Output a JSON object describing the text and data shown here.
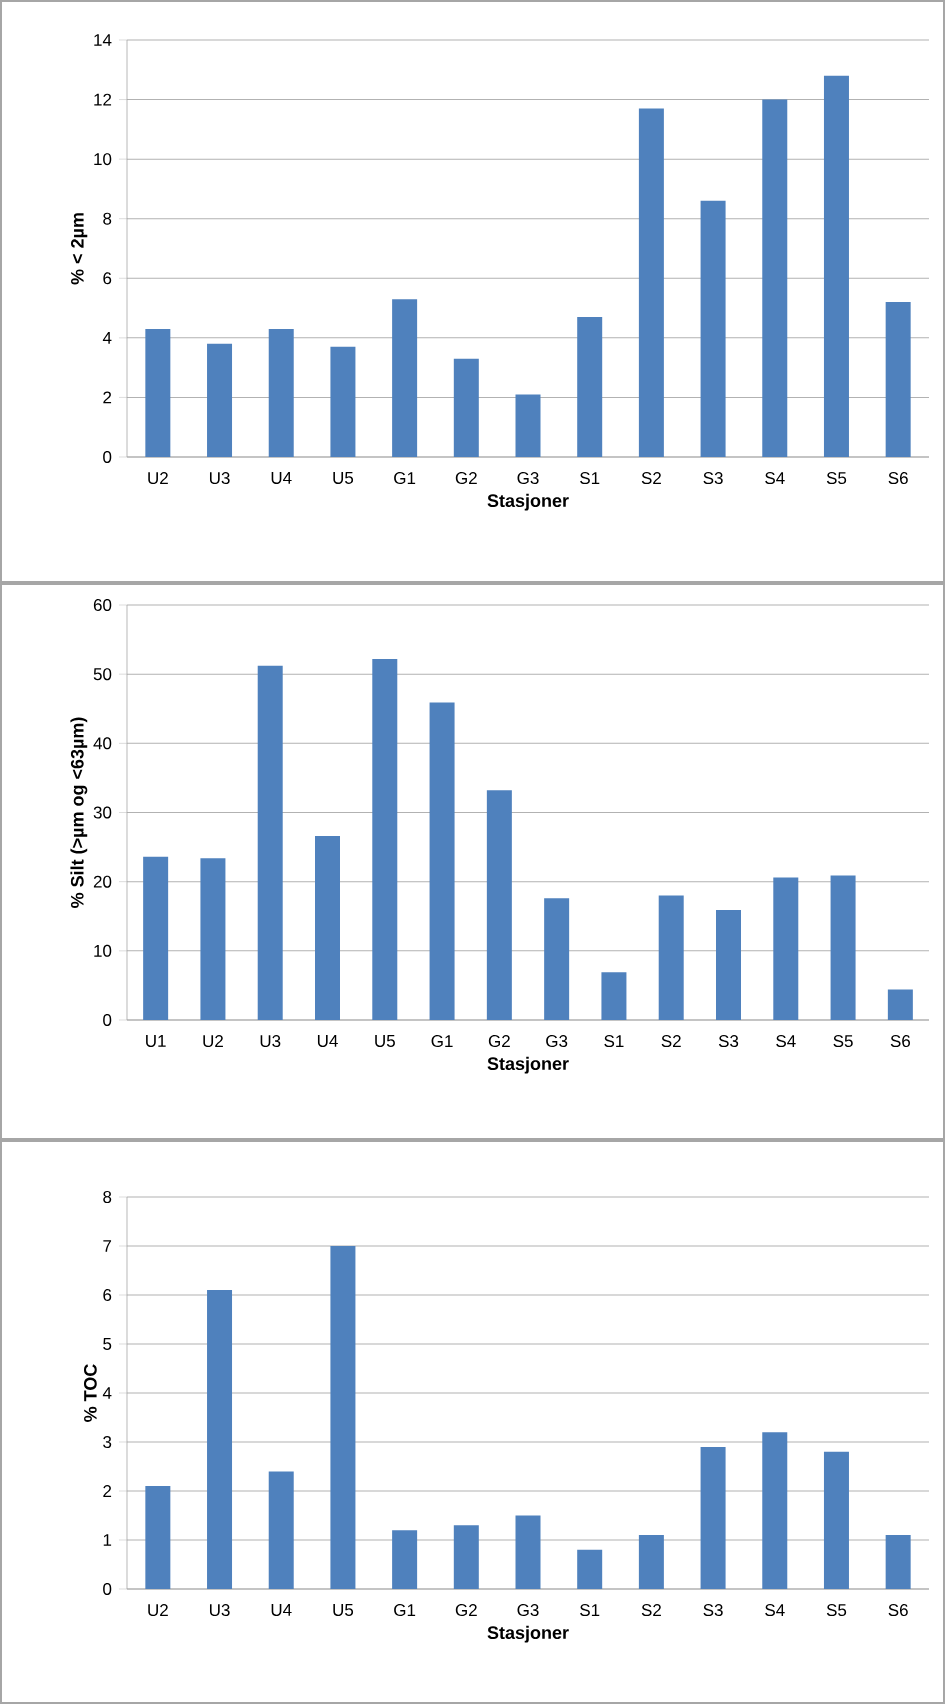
{
  "chart_data": [
    {
      "type": "bar",
      "categories": [
        "U2",
        "U3",
        "U4",
        "U5",
        "G1",
        "G2",
        "G3",
        "S1",
        "S2",
        "S3",
        "S4",
        "S5",
        "S6"
      ],
      "values": [
        4.3,
        3.8,
        4.3,
        3.7,
        5.3,
        3.3,
        2.1,
        4.7,
        11.7,
        8.6,
        12.0,
        12.8,
        5.2
      ],
      "color": "#4f81bd",
      "xlabel": "Stasjoner",
      "ylabel": "% < 2µm",
      "ylim": [
        0,
        14
      ],
      "yticks": [
        0,
        2,
        4,
        6,
        8,
        10,
        12,
        14
      ],
      "grid": "y"
    },
    {
      "type": "bar",
      "categories": [
        "U1",
        "U2",
        "U3",
        "U4",
        "U5",
        "G1",
        "G2",
        "G3",
        "S1",
        "S2",
        "S3",
        "S4",
        "S5",
        "S6"
      ],
      "values": [
        23.6,
        23.4,
        51.2,
        26.6,
        52.2,
        45.9,
        33.2,
        17.6,
        6.9,
        18.0,
        15.9,
        20.6,
        20.9,
        4.4
      ],
      "color": "#4f81bd",
      "xlabel": "Stasjoner",
      "ylabel": "% Silt (>µm og <63µm)",
      "ylim": [
        0,
        60
      ],
      "yticks": [
        0,
        10,
        20,
        30,
        40,
        50,
        60
      ],
      "grid": "y"
    },
    {
      "type": "bar",
      "categories": [
        "U2",
        "U3",
        "U4",
        "U5",
        "G1",
        "G2",
        "G3",
        "S1",
        "S2",
        "S3",
        "S4",
        "S5",
        "S6"
      ],
      "values": [
        2.1,
        6.1,
        2.4,
        7.0,
        1.2,
        1.3,
        1.5,
        0.8,
        1.1,
        2.9,
        3.2,
        2.8,
        1.1
      ],
      "color": "#4f81bd",
      "xlabel": "Stasjoner",
      "ylabel": "% TOC",
      "ylim": [
        0,
        8
      ],
      "yticks": [
        0,
        1,
        2,
        3,
        4,
        5,
        6,
        7,
        8
      ],
      "grid": "y"
    }
  ]
}
